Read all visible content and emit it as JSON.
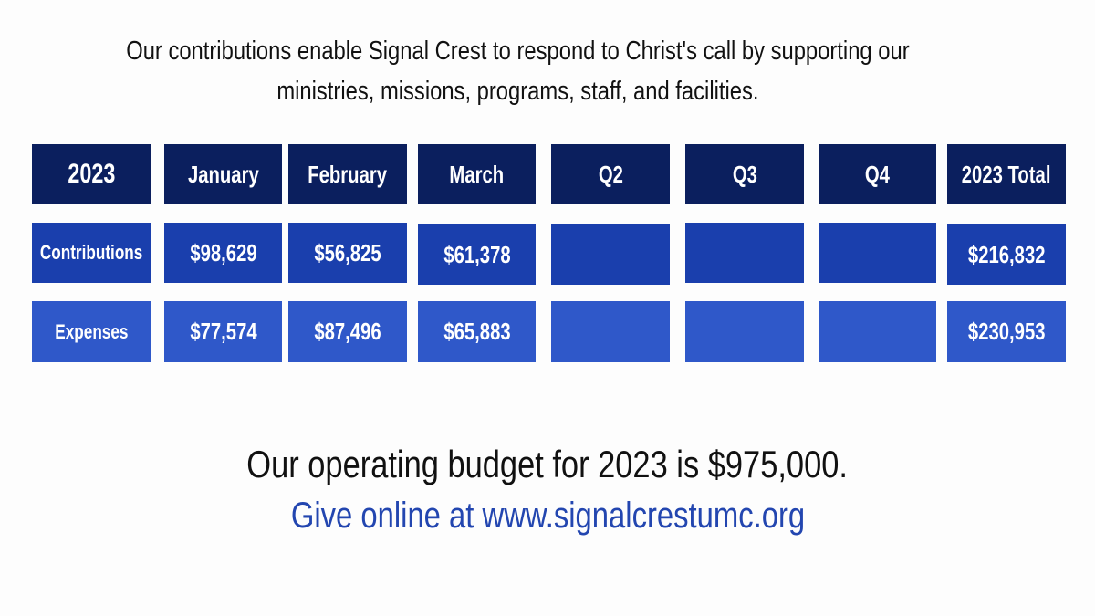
{
  "intro": {
    "line1": "Our contributions enable Signal Crest to respond to Christ's call by supporting our",
    "line2": "ministries, missions, programs, staff, and facilities."
  },
  "table": {
    "headers": [
      "2023",
      "January",
      "February",
      "March",
      "Q2",
      "Q3",
      "Q4",
      "2023 Total"
    ],
    "rows": [
      {
        "label": "Contributions",
        "values": [
          "$98,629",
          "$56,825",
          "$61,378",
          "",
          "",
          "",
          "$216,832"
        ]
      },
      {
        "label": "Expenses",
        "values": [
          "$77,574",
          "$87,496",
          "$65,883",
          "",
          "",
          "",
          "$230,953"
        ]
      }
    ]
  },
  "budget_text": "Our operating budget for 2023 is $975,000.",
  "give_text": "Give online at www.signalcrestumc.org",
  "colors": {
    "header": "#0b1f5e",
    "contributions_row": "#1a3fad",
    "expenses_row": "#2f58c9",
    "give_link": "#2346b0"
  }
}
